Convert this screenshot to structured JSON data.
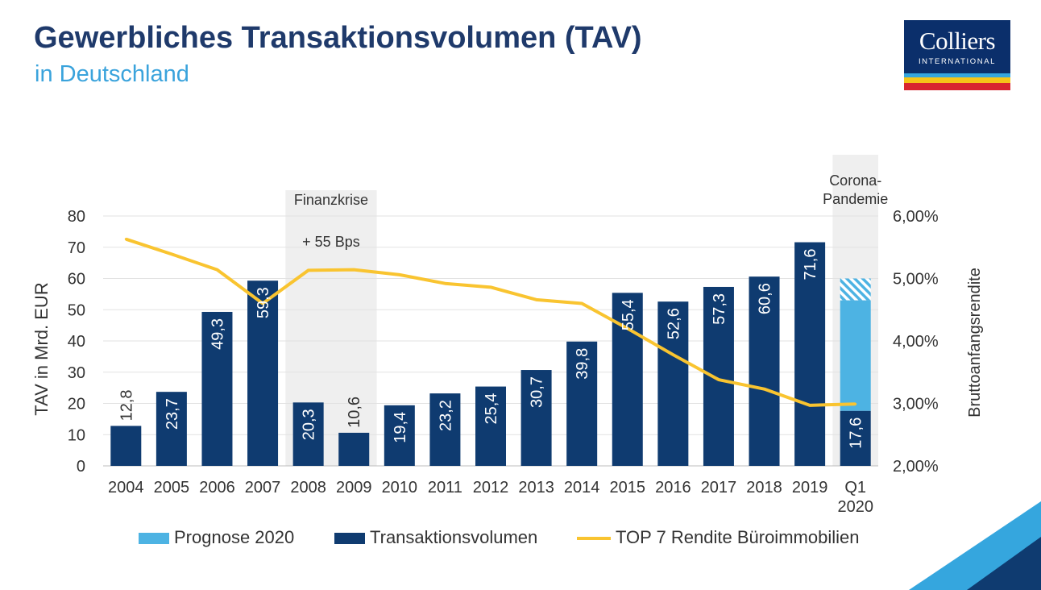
{
  "header": {
    "title": "Gewerbliches Transaktionsvolumen (TAV)",
    "subtitle": "in Deutschland"
  },
  "logo": {
    "name": "Colliers",
    "tagline": "INTERNATIONAL"
  },
  "colors": {
    "navy": "#0f3b70",
    "light_blue": "#4db3e3",
    "yellow": "#f9c430",
    "shade": "#efefef"
  },
  "chart_data": {
    "type": "bar",
    "categories": [
      "2004",
      "2005",
      "2006",
      "2007",
      "2008",
      "2009",
      "2010",
      "2011",
      "2012",
      "2013",
      "2014",
      "2015",
      "2016",
      "2017",
      "2018",
      "2019",
      "Q1\n2020"
    ],
    "series": [
      {
        "name": "Transaktionsvolumen",
        "type": "bar",
        "axis": "left",
        "color": "#0f3b70",
        "values": [
          12.8,
          23.7,
          49.3,
          59.3,
          20.3,
          10.6,
          19.4,
          23.2,
          25.4,
          30.7,
          39.8,
          55.4,
          52.6,
          57.3,
          60.6,
          71.6,
          17.6
        ],
        "labels": [
          "12,8",
          "23,7",
          "49,3",
          "59,3",
          "20,3",
          "10,6",
          "19,4",
          "23,2",
          "25,4",
          "30,7",
          "39,8",
          "55,4",
          "52,6",
          "57,3",
          "60,6",
          "71,6",
          "17,6"
        ]
      },
      {
        "name": "Prognose 2020",
        "type": "stacked_bar",
        "axis": "left",
        "color": "#4db3e3",
        "category": "Q1\n2020",
        "solid_range": [
          17.6,
          53
        ],
        "hatched_range": [
          53,
          60
        ]
      },
      {
        "name": "TOP 7 Rendite Büroimmobilien",
        "type": "line",
        "axis": "right",
        "color": "#f9c430",
        "values": [
          5.63,
          5.39,
          5.14,
          4.6,
          5.13,
          5.14,
          5.06,
          4.92,
          4.86,
          4.66,
          4.6,
          4.2,
          3.78,
          3.38,
          3.23,
          2.97,
          2.99
        ]
      }
    ],
    "y_left": {
      "label": "TAV in Mrd. EUR",
      "min": 0,
      "max": 80,
      "ticks": [
        0,
        10,
        20,
        30,
        40,
        50,
        60,
        70,
        80
      ]
    },
    "y_right": {
      "label": "Bruttoanfangsrendite",
      "min": 2,
      "max": 6,
      "ticks": [
        2,
        3,
        4,
        5,
        6
      ],
      "tick_labels": [
        "2,00%",
        "3,00%",
        "4,00%",
        "5,00%",
        "6,00%"
      ]
    },
    "shaded_regions": [
      {
        "from": "2008",
        "to": "2009",
        "label": "Finanzkrise",
        "note": "+ 55 Bps"
      },
      {
        "from": "Q1\n2020",
        "to": "Q1\n2020",
        "label": "Corona-\nPandemie"
      }
    ],
    "grid": true,
    "legend": {
      "position": "bottom",
      "items": [
        "Prognose 2020",
        "Transaktionsvolumen",
        "TOP 7 Rendite Büroimmobilien"
      ]
    }
  }
}
